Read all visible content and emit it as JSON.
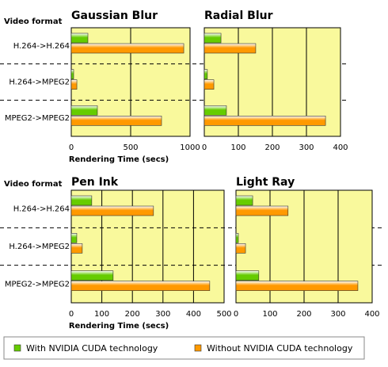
{
  "chart_data": [
    {
      "type": "hbar",
      "title": "Gaussian Blur",
      "y_label": "Video format",
      "x_label": "Rendering Time (secs)",
      "categories": [
        "H.264->H.264",
        "H.264->MPEG2",
        "MPEG2->MPEG2"
      ],
      "series": [
        {
          "name": "With NVIDIA CUDA technology",
          "color": "#66cc00",
          "values": [
            140,
            20,
            220
          ]
        },
        {
          "name": "Without NVIDIA CUDA technology",
          "color": "#ff9900",
          "values": [
            947,
            47,
            760
          ]
        }
      ],
      "xlim": [
        0,
        1000
      ],
      "xticks": [
        0,
        500,
        1000
      ],
      "grid": true
    },
    {
      "type": "hbar",
      "title": "Radial Blur",
      "series": [
        {
          "color": "#66cc00",
          "values": [
            49,
            9,
            65
          ]
        },
        {
          "color": "#ff9900",
          "values": [
            151,
            28,
            356
          ]
        }
      ],
      "xlim": [
        0,
        400
      ],
      "xticks": [
        0,
        100,
        200,
        300,
        400
      ],
      "grid": true
    },
    {
      "type": "hbar",
      "title": "Pen Ink",
      "y_label": "Video format",
      "x_label": "Rendering Time (secs)",
      "categories": [
        "H.264->H.264",
        "H.264->MPEG2",
        "MPEG2->MPEG2"
      ],
      "series": [
        {
          "color": "#66cc00",
          "values": [
            67,
            18,
            137
          ]
        },
        {
          "color": "#ff9900",
          "values": [
            269,
            36,
            453
          ]
        }
      ],
      "xlim": [
        0,
        500
      ],
      "xticks": [
        0,
        100,
        200,
        300,
        400,
        500
      ],
      "grid": true
    },
    {
      "type": "hbar",
      "title": "Light Ray",
      "series": [
        {
          "color": "#66cc00",
          "values": [
            49,
            7,
            67
          ]
        },
        {
          "color": "#ff9900",
          "values": [
            153,
            28,
            358
          ]
        }
      ],
      "xlim": [
        0,
        400
      ],
      "xticks": [
        0,
        100,
        200,
        300,
        400
      ],
      "grid": true
    }
  ]
}
